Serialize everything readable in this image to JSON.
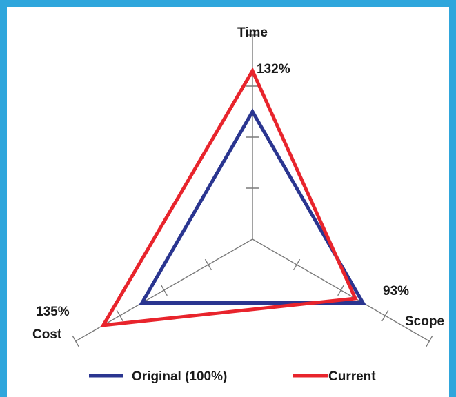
{
  "chart_data": {
    "type": "radar",
    "axes": [
      "Time",
      "Scope",
      "Cost"
    ],
    "series": [
      {
        "name": "Original (100%)",
        "values": [
          100,
          100,
          100
        ],
        "color": "#2a3590"
      },
      {
        "name": "Current",
        "values": [
          132,
          93,
          135
        ],
        "color": "#e8242c"
      }
    ],
    "value_labels": {
      "Time": "132%",
      "Scope": "93%",
      "Cost": "135%"
    },
    "axis_max": 160,
    "ticks": [
      40,
      80,
      120,
      160
    ],
    "legend_position": "bottom",
    "frame_color": "#2fa6dc"
  }
}
